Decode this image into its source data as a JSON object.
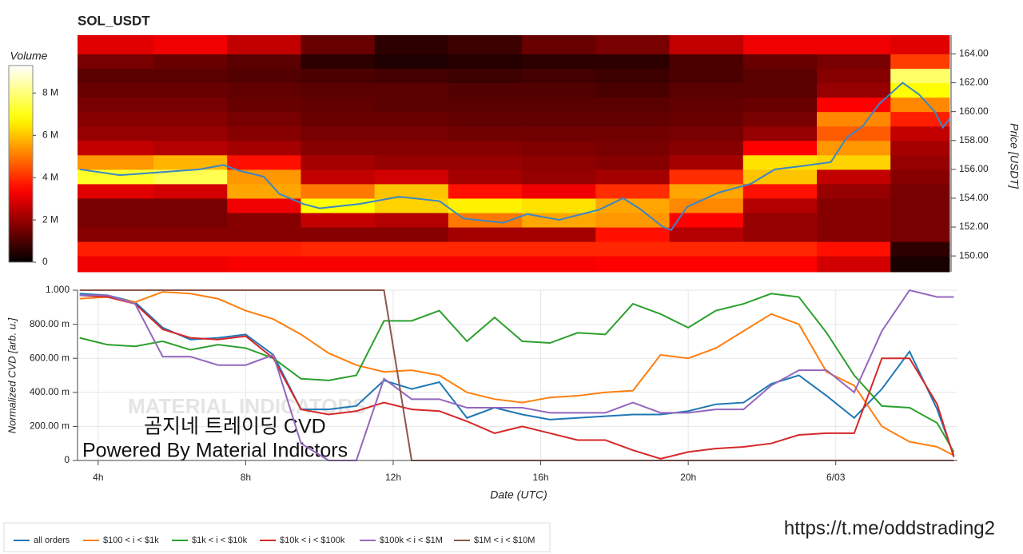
{
  "chart_data": [
    {
      "type": "heatmap",
      "title": "SOL_USDT",
      "colormap": "hot",
      "x_bins": [
        3.44,
        5.5,
        7.5,
        9.5,
        11.5,
        13.5,
        15.5,
        17.5,
        19.5,
        21.5,
        23.5,
        25.5,
        27.1
      ],
      "y_bins": [
        148.9,
        150,
        151,
        152,
        153,
        154,
        155,
        156,
        157,
        158,
        159,
        160,
        161,
        162,
        163,
        164,
        165.3
      ],
      "z": [
        [
          3.2,
          3.8,
          1.8,
          1.6,
          1.6,
          3.0,
          7.2,
          5.4,
          2.6,
          2.0,
          1.8,
          1.6,
          1.4,
          1.2,
          1.6,
          3.0
        ],
        [
          3.2,
          3.8,
          1.8,
          1.6,
          1.6,
          2.8,
          7.6,
          5.8,
          2.4,
          2.0,
          1.8,
          1.6,
          1.4,
          1.2,
          1.4,
          3.2
        ],
        [
          3.3,
          3.8,
          1.8,
          1.8,
          3.2,
          5.6,
          5.4,
          3.6,
          2.2,
          1.8,
          1.6,
          1.4,
          1.3,
          1.1,
          1.2,
          2.6
        ],
        [
          3.3,
          3.9,
          1.8,
          2.6,
          6.8,
          5.0,
          2.6,
          2.2,
          1.8,
          1.6,
          1.4,
          1.3,
          1.2,
          1.0,
          0.6,
          1.4
        ],
        [
          3.3,
          3.9,
          1.8,
          2.4,
          6.2,
          6.0,
          2.8,
          2.0,
          1.8,
          1.6,
          1.4,
          1.2,
          1.2,
          0.9,
          0.4,
          0.6
        ],
        [
          3.3,
          3.9,
          2.2,
          5.0,
          6.6,
          3.6,
          2.2,
          2.0,
          1.8,
          1.5,
          1.3,
          1.2,
          1.1,
          0.8,
          0.5,
          0.8
        ],
        [
          3.3,
          3.9,
          2.2,
          5.6,
          6.4,
          3.2,
          2.0,
          1.9,
          1.7,
          1.5,
          1.3,
          1.2,
          1.1,
          0.9,
          0.6,
          1.4
        ],
        [
          3.4,
          3.9,
          3.6,
          5.4,
          5.6,
          4.0,
          2.2,
          1.8,
          1.6,
          1.5,
          1.3,
          1.2,
          1.0,
          0.8,
          0.6,
          1.6
        ],
        [
          3.4,
          3.9,
          2.4,
          3.4,
          5.2,
          5.6,
          4.0,
          2.2,
          1.8,
          1.6,
          1.4,
          1.3,
          1.2,
          1.0,
          1.0,
          2.6
        ],
        [
          3.4,
          3.9,
          2.0,
          2.0,
          2.4,
          3.6,
          6.0,
          6.4,
          3.4,
          2.0,
          1.6,
          1.4,
          1.2,
          1.2,
          1.4,
          3.2
        ],
        [
          2.8,
          3.6,
          1.8,
          1.8,
          1.8,
          2.0,
          2.6,
          6.2,
          5.4,
          4.6,
          5.2,
          3.4,
          2.0,
          1.8,
          1.6,
          3.2
        ],
        [
          0.3,
          0.6,
          1.6,
          1.6,
          1.6,
          1.6,
          1.8,
          2.0,
          2.2,
          2.6,
          3.8,
          5.2,
          6.8,
          7.8,
          4.2,
          3.0
        ]
      ],
      "xlim": [
        3.44,
        27.1
      ],
      "ylim": [
        148.9,
        165.3
      ],
      "yticks": [
        {
          "value": 150,
          "label": "150.00"
        },
        {
          "value": 152,
          "label": "152.00"
        },
        {
          "value": 154,
          "label": "154.00"
        },
        {
          "value": 156,
          "label": "156.00"
        },
        {
          "value": 158,
          "label": "158.00"
        },
        {
          "value": 160,
          "label": "160.00"
        },
        {
          "value": 162,
          "label": "162.00"
        },
        {
          "value": 164,
          "label": "164.00"
        }
      ],
      "y_label": "Price [USDT]",
      "colorbar": {
        "title": "Volume",
        "lim": [
          0,
          9.3
        ],
        "ticks": [
          0,
          {
            "value": 2,
            "label": "2 M"
          },
          {
            "value": 4,
            "label": "4 M"
          },
          {
            "value": 6,
            "label": "6 M"
          },
          {
            "value": 8,
            "label": "8 M"
          }
        ]
      },
      "line": {
        "color": "#3b86c6",
        "x": [
          3.5,
          4.59,
          5.67,
          6.75,
          7.4,
          7.84,
          8.49,
          8.92,
          9.57,
          10.01,
          11.09,
          12.17,
          13.26,
          13.91,
          14.99,
          15.64,
          16.51,
          17.59,
          18.24,
          18.68,
          19.33,
          19.55,
          19.98,
          20.85,
          21.71,
          22.36,
          23.01,
          23.88,
          24.31,
          24.75,
          25.18,
          25.83,
          26.27,
          26.7,
          26.92,
          27.1
        ],
        "values": [
          156.0,
          155.6,
          155.8,
          156.0,
          156.3,
          155.9,
          155.5,
          154.3,
          153.6,
          153.3,
          153.6,
          154.1,
          153.8,
          152.6,
          152.3,
          152.9,
          152.5,
          153.2,
          154.0,
          153.3,
          152.0,
          151.8,
          153.4,
          154.4,
          155.0,
          156.0,
          156.2,
          156.5,
          158.2,
          159.0,
          160.5,
          162.0,
          161.2,
          160.0,
          158.9,
          159.5
        ]
      }
    },
    {
      "type": "line",
      "x_label": "Date (UTC)",
      "y_label": "Normalized CVD [arb. u.]",
      "grid": true,
      "xlim": [
        3.44,
        27.3
      ],
      "ylim": [
        0,
        1
      ],
      "xticks": [
        {
          "value": 4,
          "label": "4h"
        },
        {
          "value": 8,
          "label": "8h"
        },
        {
          "value": 12,
          "label": "12h"
        },
        {
          "value": 16,
          "label": "16h"
        },
        {
          "value": 20,
          "label": "20h"
        },
        {
          "value": 24,
          "label": "6/03"
        }
      ],
      "yticks": [
        0,
        {
          "value": 0.2,
          "label": "200.00 m"
        },
        {
          "value": 0.4,
          "label": "400.00 m"
        },
        {
          "value": 0.6,
          "label": "600.00 m"
        },
        {
          "value": 0.8,
          "label": "800.00 m"
        },
        {
          "value": 1,
          "label": "1.000"
        }
      ],
      "x": [
        3.5,
        4.25,
        5,
        5.75,
        6.5,
        7.25,
        8,
        8.75,
        9.5,
        10.25,
        11,
        11.75,
        12.5,
        13.25,
        14,
        14.75,
        15.5,
        16.25,
        17,
        17.75,
        18.5,
        19.25,
        20,
        20.75,
        21.5,
        22.25,
        23,
        23.75,
        24.5,
        25.25,
        26,
        26.75,
        27.2
      ],
      "series": [
        {
          "name": "all orders",
          "color": "#1f77b4",
          "values": [
            0.98,
            0.97,
            0.93,
            0.78,
            0.71,
            0.72,
            0.74,
            0.62,
            0.3,
            0.3,
            0.32,
            0.47,
            0.42,
            0.46,
            0.25,
            0.31,
            0.27,
            0.24,
            0.25,
            0.26,
            0.27,
            0.27,
            0.29,
            0.33,
            0.34,
            0.45,
            0.5,
            0.38,
            0.25,
            0.42,
            0.64,
            0.3,
            0.03
          ]
        },
        {
          "name": "$100 < i < $1k",
          "color": "#ff7f0e",
          "values": [
            0.95,
            0.96,
            0.93,
            0.99,
            0.98,
            0.95,
            0.88,
            0.83,
            0.74,
            0.63,
            0.56,
            0.52,
            0.53,
            0.5,
            0.4,
            0.36,
            0.34,
            0.37,
            0.38,
            0.4,
            0.41,
            0.62,
            0.6,
            0.66,
            0.76,
            0.86,
            0.8,
            0.52,
            0.44,
            0.2,
            0.11,
            0.08,
            0.03
          ]
        },
        {
          "name": "$1k < i < $10k",
          "color": "#2ca02c",
          "values": [
            0.72,
            0.68,
            0.67,
            0.7,
            0.65,
            0.68,
            0.66,
            0.6,
            0.48,
            0.47,
            0.5,
            0.82,
            0.82,
            0.88,
            0.7,
            0.84,
            0.7,
            0.69,
            0.75,
            0.74,
            0.92,
            0.86,
            0.78,
            0.88,
            0.92,
            0.98,
            0.96,
            0.75,
            0.5,
            0.32,
            0.31,
            0.22,
            0.05
          ]
        },
        {
          "name": "$10k < i < $100k",
          "color": "#d62728",
          "values": [
            0.97,
            0.96,
            0.92,
            0.77,
            0.72,
            0.71,
            0.73,
            0.6,
            0.3,
            0.27,
            0.29,
            0.34,
            0.3,
            0.29,
            0.23,
            0.16,
            0.2,
            0.16,
            0.12,
            0.12,
            0.06,
            0.01,
            0.05,
            0.07,
            0.08,
            0.1,
            0.15,
            0.16,
            0.16,
            0.6,
            0.6,
            0.33,
            0.02
          ]
        },
        {
          "name": "$100k < i < $1M",
          "color": "#9467bd",
          "values": [
            0.97,
            0.97,
            0.92,
            0.61,
            0.61,
            0.56,
            0.56,
            0.62,
            0.1,
            0,
            0,
            0.48,
            0.36,
            0.36,
            0.31,
            0.31,
            0.31,
            0.28,
            0.28,
            0.28,
            0.34,
            0.28,
            0.28,
            0.3,
            0.3,
            0.44,
            0.53,
            0.53,
            0.4,
            0.76,
            1,
            0.96,
            0.96
          ]
        },
        {
          "name": "$1M < i < $10M",
          "color": "#8c564b",
          "values": [
            1,
            1,
            1,
            1,
            1,
            1,
            1,
            1,
            1,
            1,
            1,
            1,
            0,
            0,
            0,
            0,
            0,
            0,
            0,
            0,
            0,
            0,
            0,
            0,
            0,
            0,
            0,
            0,
            0,
            0,
            0,
            0,
            0
          ]
        }
      ],
      "watermark": "MATERIAL INDICATORS",
      "annotations": [
        "곰지네 트레이딩 CVD",
        "Powered By Material Indictors"
      ]
    }
  ],
  "link": "https://t.me/oddstrading2"
}
